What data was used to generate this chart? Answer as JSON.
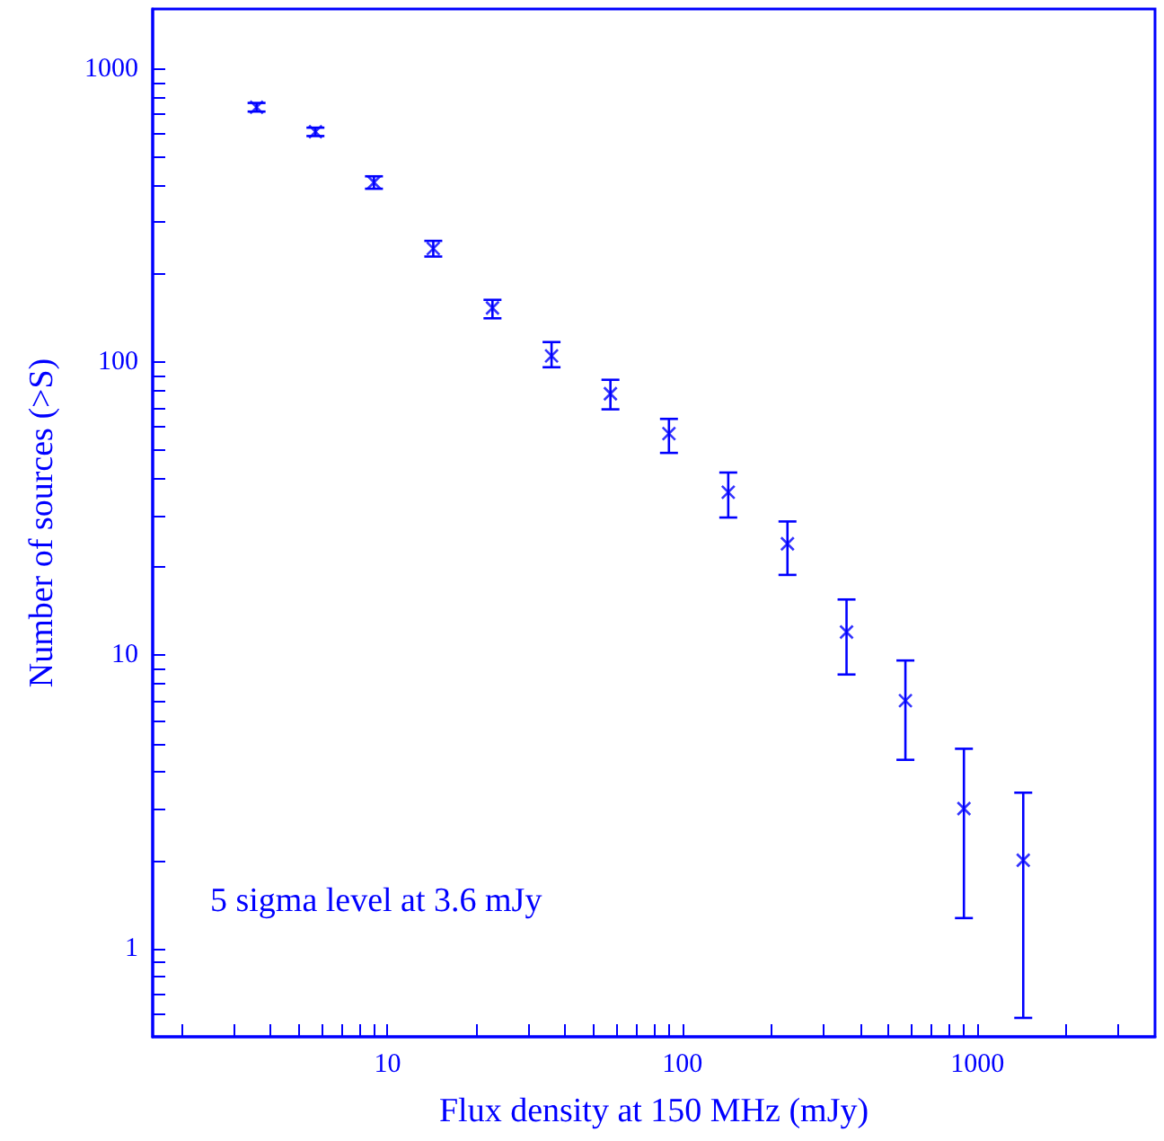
{
  "chart_data": {
    "type": "scatter",
    "xlabel": "Flux density at 150 MHz (mJy)",
    "ylabel": "Number of sources (>S)",
    "annotations": [
      "5 sigma level at 3.6 mJy"
    ],
    "x": [
      3.6,
      5.7,
      9.0,
      14.3,
      22.7,
      36,
      57,
      90,
      143,
      227,
      360,
      570,
      900,
      1430
    ],
    "series": [
      {
        "color": "#0000ff",
        "values": [
          740,
          610,
          410,
          244,
          153,
          105,
          78,
          57,
          36,
          24,
          12,
          7,
          3,
          2
        ],
        "errors": [
          [
            715,
            765
          ],
          [
            590,
            630
          ],
          [
            390,
            430
          ],
          [
            229,
            259
          ],
          [
            141,
            163
          ],
          [
            96,
            117
          ],
          [
            69,
            87
          ],
          [
            49,
            64
          ],
          [
            29.5,
            42
          ],
          [
            18.8,
            28.6
          ],
          [
            8.6,
            15.5
          ],
          [
            4.4,
            9.6
          ],
          [
            1.27,
            4.8
          ],
          [
            0.58,
            3.4
          ]
        ]
      }
    ],
    "marker": "cross",
    "log": "xy",
    "grid": false,
    "xlim": [
      1.6,
      4000
    ],
    "ylim": [
      0.5,
      1600
    ],
    "xticks": [
      {
        "value": 2,
        "label": null
      },
      {
        "value": 3,
        "label": null
      },
      {
        "value": 4,
        "label": null
      },
      {
        "value": 5,
        "label": null
      },
      {
        "value": 6,
        "label": null
      },
      {
        "value": 7,
        "label": null
      },
      {
        "value": 8,
        "label": null
      },
      {
        "value": 9,
        "label": null
      },
      10,
      {
        "value": 20,
        "label": null
      },
      {
        "value": 30,
        "label": null
      },
      {
        "value": 40,
        "label": null
      },
      {
        "value": 50,
        "label": null
      },
      {
        "value": 60,
        "label": null
      },
      {
        "value": 70,
        "label": null
      },
      {
        "value": 80,
        "label": null
      },
      {
        "value": 90,
        "label": null
      },
      100,
      {
        "value": 200,
        "label": null
      },
      {
        "value": 300,
        "label": null
      },
      {
        "value": 400,
        "label": null
      },
      {
        "value": 500,
        "label": null
      },
      {
        "value": 600,
        "label": null
      },
      {
        "value": 700,
        "label": null
      },
      {
        "value": 800,
        "label": null
      },
      {
        "value": 900,
        "label": null
      },
      1000,
      {
        "value": 2000,
        "label": null
      },
      {
        "value": 3000,
        "label": null
      }
    ],
    "yticks": [
      {
        "value": 0.6,
        "label": null
      },
      {
        "value": 0.7,
        "label": null
      },
      {
        "value": 0.8,
        "label": null
      },
      {
        "value": 0.9,
        "label": null
      },
      1,
      {
        "value": 2,
        "label": null
      },
      {
        "value": 3,
        "label": null
      },
      {
        "value": 4,
        "label": null
      },
      {
        "value": 5,
        "label": null
      },
      {
        "value": 6,
        "label": null
      },
      {
        "value": 7,
        "label": null
      },
      {
        "value": 8,
        "label": null
      },
      {
        "value": 9,
        "label": null
      },
      10,
      {
        "value": 20,
        "label": null
      },
      {
        "value": 30,
        "label": null
      },
      {
        "value": 40,
        "label": null
      },
      {
        "value": 50,
        "label": null
      },
      {
        "value": 60,
        "label": null
      },
      {
        "value": 70,
        "label": null
      },
      {
        "value": 80,
        "label": null
      },
      {
        "value": 90,
        "label": null
      },
      100,
      {
        "value": 200,
        "label": null
      },
      {
        "value": 300,
        "label": null
      },
      {
        "value": 400,
        "label": null
      },
      {
        "value": 500,
        "label": null
      },
      {
        "value": 600,
        "label": null
      },
      {
        "value": 700,
        "label": null
      },
      {
        "value": 800,
        "label": null
      },
      {
        "value": 900,
        "label": null
      },
      1000
    ]
  }
}
